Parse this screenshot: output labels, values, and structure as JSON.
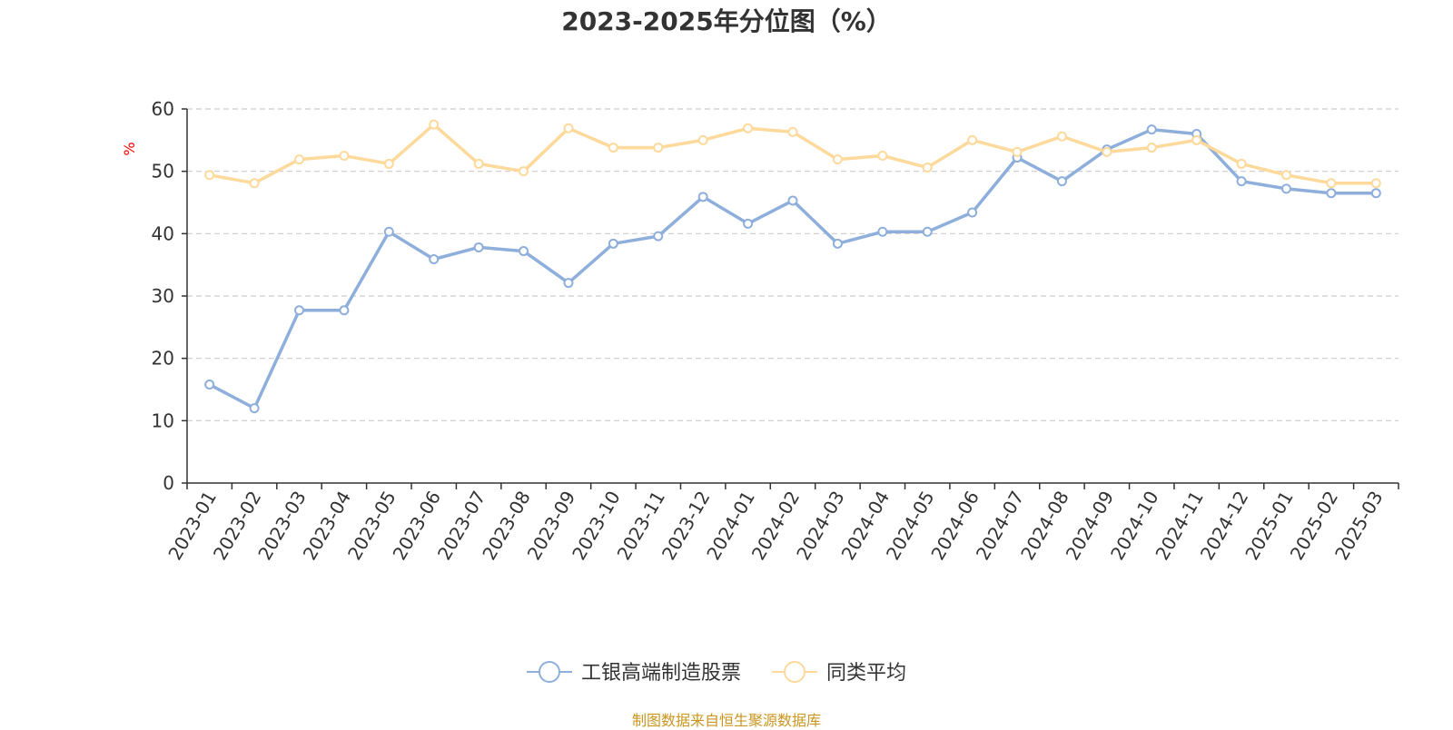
{
  "title": "2023-2025年分位图（%）",
  "source": "制图数据来自恒生聚源数据库",
  "colors": {
    "source_text": "#c8961e",
    "unit_text": "#ff0000"
  },
  "chart_data": {
    "type": "line",
    "title": "2023-2025年分位图（%）",
    "ylabel": "%",
    "ylim": [
      0,
      60
    ],
    "yticks": [
      0,
      10,
      20,
      30,
      40,
      50,
      60
    ],
    "grid": "horizontal-dashed",
    "legend_position": "bottom-center",
    "categories": [
      "2023-01",
      "2023-02",
      "2023-03",
      "2023-04",
      "2023-05",
      "2023-06",
      "2023-07",
      "2023-08",
      "2023-09",
      "2023-10",
      "2023-11",
      "2023-12",
      "2024-01",
      "2024-02",
      "2024-03",
      "2024-04",
      "2024-05",
      "2024-06",
      "2024-07",
      "2024-08",
      "2024-09",
      "2024-10",
      "2024-11",
      "2024-12",
      "2025-01",
      "2025-02",
      "2025-03"
    ],
    "series": [
      {
        "name": "工银高端制造股票",
        "color": "#8eaedc",
        "values": [
          15.8,
          12.0,
          27.7,
          27.7,
          40.3,
          35.9,
          37.8,
          37.2,
          32.1,
          38.4,
          39.6,
          45.9,
          41.6,
          45.3,
          38.4,
          40.3,
          40.3,
          43.4,
          52.2,
          48.4,
          53.5,
          56.7,
          56.0,
          48.4,
          47.2,
          46.5,
          46.5
        ]
      },
      {
        "name": "同类平均",
        "color": "#fdd99b",
        "values": [
          49.4,
          48.1,
          51.9,
          52.5,
          51.2,
          57.5,
          51.2,
          50.0,
          56.9,
          53.8,
          53.8,
          55.0,
          56.9,
          56.3,
          51.9,
          52.5,
          50.6,
          55.0,
          53.1,
          55.6,
          53.1,
          53.8,
          55.0,
          51.2,
          49.4,
          48.1,
          48.1
        ]
      }
    ]
  }
}
